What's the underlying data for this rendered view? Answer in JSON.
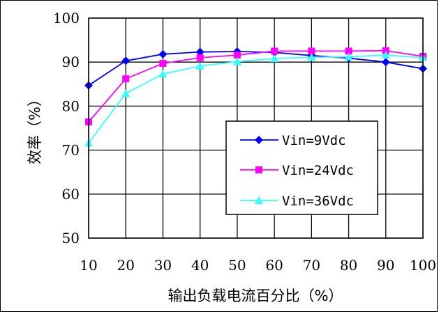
{
  "chart_data": {
    "type": "line",
    "xlabel": "输出负载电流百分比（%）",
    "ylabel": "效率（%）",
    "x": [
      10,
      20,
      30,
      40,
      50,
      60,
      70,
      80,
      90,
      100
    ],
    "xlim": [
      10,
      100
    ],
    "ylim": [
      50,
      100
    ],
    "yticks": [
      50,
      60,
      70,
      80,
      90,
      100
    ],
    "xticks": [
      10,
      20,
      30,
      40,
      50,
      60,
      70,
      80,
      90,
      100
    ],
    "grid": true,
    "legend_position": "lower-right",
    "series": [
      {
        "name": "Vin=9Vdc",
        "color": "#0000FF",
        "marker": "diamond",
        "values": [
          84.7,
          90.3,
          91.8,
          92.3,
          92.4,
          92.2,
          91.5,
          90.9,
          90.0,
          88.5
        ]
      },
      {
        "name": "Vin=24Vdc",
        "color": "#FF00FF",
        "marker": "square",
        "values": [
          76.4,
          86.2,
          89.7,
          91.0,
          91.6,
          92.5,
          92.5,
          92.5,
          92.6,
          91.3
        ]
      },
      {
        "name": "Vin=36Vdc",
        "color": "#33FFFF",
        "marker": "triangle",
        "values": [
          71.6,
          82.9,
          87.3,
          89.1,
          90.1,
          90.8,
          91.1,
          91.2,
          91.6,
          91.0
        ]
      }
    ]
  }
}
